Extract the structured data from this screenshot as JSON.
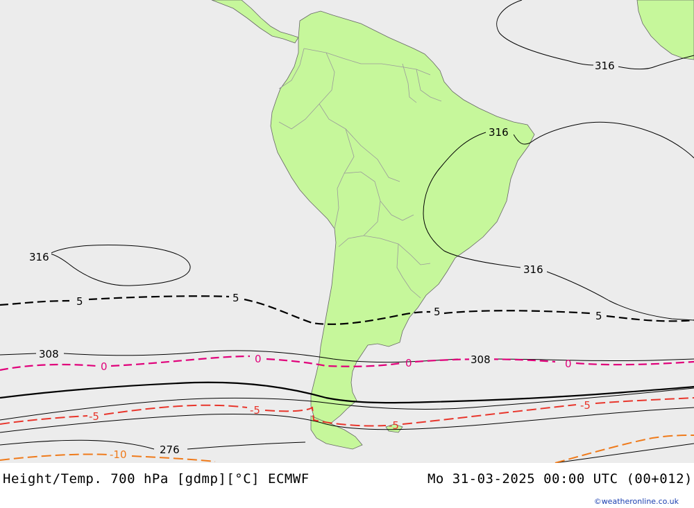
{
  "map": {
    "colors": {
      "ocean": "#ececec",
      "land": "#c6f79b",
      "border": "#9a9a9a",
      "coast": "#666666",
      "height_contour": "#000000",
      "temp_pos": "#000000",
      "temp_zero": "#e0007a",
      "temp_neg5": "#e8352b",
      "temp_neg10": "#ef7a1a"
    },
    "contour_labels": {
      "h316_west": "316",
      "h316_north": "316",
      "h316_brazil": "316",
      "h316_atlantic": "316",
      "h308_west": "308",
      "h308_east": "308",
      "h276": "276",
      "t5_a": "5",
      "t5_b": "5",
      "t5_c": "5",
      "t5_d": "5",
      "t0_a": "0",
      "t0_b": "0",
      "t0_c": "0",
      "t0_d": "0",
      "tm5_a": "-5",
      "tm5_b": "-5",
      "tm5_c": "-5",
      "tm5_d": "-5",
      "tm10": "-10"
    }
  },
  "footer": {
    "title": "Height/Temp. 700 hPa [gdmp][°C] ECMWF",
    "datetime": "Mo 31-03-2025 00:00 UTC (00+012)",
    "credit": "©weatheronline.co.uk"
  }
}
